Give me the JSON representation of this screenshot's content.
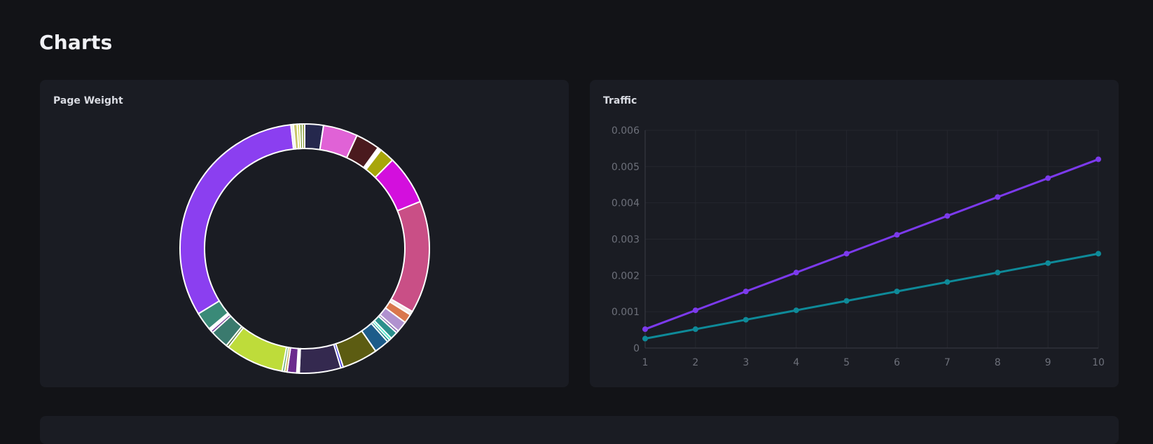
{
  "page": {
    "title": "Charts"
  },
  "cards": {
    "page_weight": {
      "title": "Page Weight"
    },
    "traffic": {
      "title": "Traffic"
    }
  },
  "chart_data": [
    {
      "type": "pie",
      "donut": true,
      "title": "Page Weight",
      "values": [
        0.6,
        0.6,
        0.6,
        4.5,
        8.3,
        5.8,
        0.9,
        3.6,
        11.9,
        27.1,
        0.9,
        2.2,
        2.6,
        0.6,
        1.8,
        0.6,
        0.6,
        3.6,
        8.6,
        0.6,
        10.0,
        0.6,
        2.3,
        0.6,
        0.6,
        14.1,
        0.6,
        4.5,
        0.6,
        0.6,
        4.4,
        59.4,
        0.6,
        0.9
      ],
      "colors": [
        "#d0d44a",
        "#6b8e23",
        "#8a9a2b",
        "#25284d",
        "#e062d6",
        "#4a1a1e",
        "#ffffff",
        "#a8a60a",
        "#d30fdd",
        "#c94f86",
        "#f2e9e9",
        "#d9764c",
        "#b091cf",
        "#7d5ba6",
        "#2a8f8c",
        "#2ee8c4",
        "#0e7c7b",
        "#1d5c8a",
        "#5c5c12",
        "#2c20d8",
        "#34294f",
        "#ffffff",
        "#6b2b8e",
        "#c7a84a",
        "#5ca36a",
        "#bedc3a",
        "#4a6b2a",
        "#3a7a6e",
        "#6b2b8e",
        "#ffffff",
        "#3a8a78",
        "#8b3ff0",
        "#e8e8e8",
        "#c9c46a"
      ]
    },
    {
      "type": "line",
      "title": "Traffic",
      "x": [
        1,
        2,
        3,
        4,
        5,
        6,
        7,
        8,
        9,
        10
      ],
      "series": [
        {
          "values": [
            0.00052,
            0.00104,
            0.00156,
            0.00208,
            0.0026,
            0.00312,
            0.00364,
            0.00416,
            0.00468,
            0.0052
          ],
          "color": "#7c3aed"
        },
        {
          "values": [
            0.00026,
            0.00052,
            0.00078,
            0.00104,
            0.0013,
            0.00156,
            0.00182,
            0.00208,
            0.00234,
            0.0026
          ],
          "color": "#0e8a99"
        }
      ],
      "xlim": [
        1,
        10
      ],
      "ylim": [
        0,
        0.006
      ],
      "yticks": [
        "0",
        "0.001",
        "0.002",
        "0.003",
        "0.004",
        "0.005",
        "0.006"
      ],
      "xticks": [
        "1",
        "2",
        "3",
        "4",
        "5",
        "6",
        "7",
        "8",
        "9",
        "10"
      ],
      "grid": true
    }
  ]
}
